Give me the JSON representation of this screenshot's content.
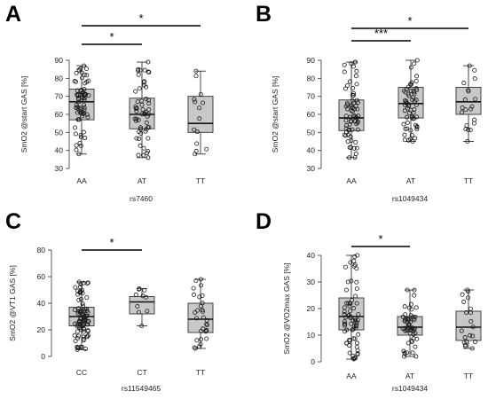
{
  "figure": {
    "background": "#ffffff",
    "box_fill": "#c8c8c8",
    "box_stroke": "#333333",
    "point_stroke": "#1a1a1a",
    "sig_line_color": "#000000"
  },
  "chart_data": [
    {
      "type": "box",
      "panel": "A",
      "ylabel": "SmO2 @start GAS [%]",
      "xlabel": "rs7460",
      "ylim": [
        30,
        90
      ],
      "yticks": [
        30,
        40,
        50,
        60,
        70,
        80,
        90
      ],
      "categories": [
        "AA",
        "AT",
        "TT"
      ],
      "boxes": [
        {
          "category": "AA",
          "whisker_low": 38,
          "q1": 57,
          "median": 67,
          "q3": 74,
          "whisker_high": 87,
          "n_points": 70
        },
        {
          "category": "AT",
          "whisker_low": 36,
          "q1": 52,
          "median": 60,
          "q3": 69,
          "whisker_high": 89,
          "n_points": 55
        },
        {
          "category": "TT",
          "whisker_low": 38,
          "q1": 50,
          "median": 55,
          "q3": 70,
          "whisker_high": 84,
          "n_points": 14
        }
      ],
      "significance": [
        {
          "from": "AA",
          "to": "AT",
          "label": "*",
          "level": 1
        },
        {
          "from": "AA",
          "to": "TT",
          "label": "*",
          "level": 2
        }
      ]
    },
    {
      "type": "box",
      "panel": "B",
      "ylabel": "SmO2 @start GAS [%]",
      "xlabel": "rs1049434",
      "ylim": [
        30,
        90
      ],
      "yticks": [
        30,
        40,
        50,
        60,
        70,
        80,
        90
      ],
      "categories": [
        "AA",
        "AT",
        "TT"
      ],
      "boxes": [
        {
          "category": "AA",
          "whisker_low": 36,
          "q1": 51,
          "median": 58,
          "q3": 68,
          "whisker_high": 89,
          "n_points": 70
        },
        {
          "category": "AT",
          "whisker_low": 45,
          "q1": 58,
          "median": 66,
          "q3": 75,
          "whisker_high": 90,
          "n_points": 60
        },
        {
          "category": "TT",
          "whisker_low": 45,
          "q1": 60,
          "median": 67,
          "q3": 75,
          "whisker_high": 87,
          "n_points": 20
        }
      ],
      "significance": [
        {
          "from": "AA",
          "to": "AT",
          "label": "***",
          "level": 1
        },
        {
          "from": "AA",
          "to": "TT",
          "label": "*",
          "level": 2
        }
      ]
    },
    {
      "type": "box",
      "panel": "C",
      "ylabel": "SmO2 @VT1 GAS [%]",
      "xlabel": "rs11549465",
      "ylim": [
        0,
        80
      ],
      "yticks": [
        0,
        20,
        40,
        60,
        80
      ],
      "categories": [
        "CC",
        "CT",
        "TT"
      ],
      "boxes": [
        {
          "category": "CC",
          "whisker_low": 5,
          "q1": 23,
          "median": 30,
          "q3": 37,
          "whisker_high": 56,
          "n_points": 90
        },
        {
          "category": "CT",
          "whisker_low": 23,
          "q1": 32,
          "median": 41,
          "q3": 45,
          "whisker_high": 51,
          "n_points": 10
        },
        {
          "category": "TT",
          "whisker_low": 6,
          "q1": 18,
          "median": 28,
          "q3": 40,
          "whisker_high": 58,
          "n_points": 30
        }
      ],
      "significance": [
        {
          "from": "CC",
          "to": "CT",
          "label": "*",
          "level": 1
        }
      ]
    },
    {
      "type": "box",
      "panel": "D",
      "ylabel": "SmO2 @VO2max GAS [%]",
      "xlabel": "rs1049434",
      "ylim": [
        0,
        40
      ],
      "yticks": [
        0,
        10,
        20,
        30,
        40
      ],
      "categories": [
        "AA",
        "AT",
        "TT"
      ],
      "boxes": [
        {
          "category": "AA",
          "whisker_low": 1,
          "q1": 12,
          "median": 17,
          "q3": 24,
          "whisker_high": 40,
          "n_points": 70
        },
        {
          "category": "AT",
          "whisker_low": 2,
          "q1": 10,
          "median": 13,
          "q3": 17,
          "whisker_high": 27,
          "n_points": 55
        },
        {
          "category": "TT",
          "whisker_low": 5,
          "q1": 8,
          "median": 13,
          "q3": 19,
          "whisker_high": 27,
          "n_points": 20
        }
      ],
      "significance": [
        {
          "from": "AA",
          "to": "AT",
          "label": "*",
          "level": 1
        }
      ]
    }
  ]
}
